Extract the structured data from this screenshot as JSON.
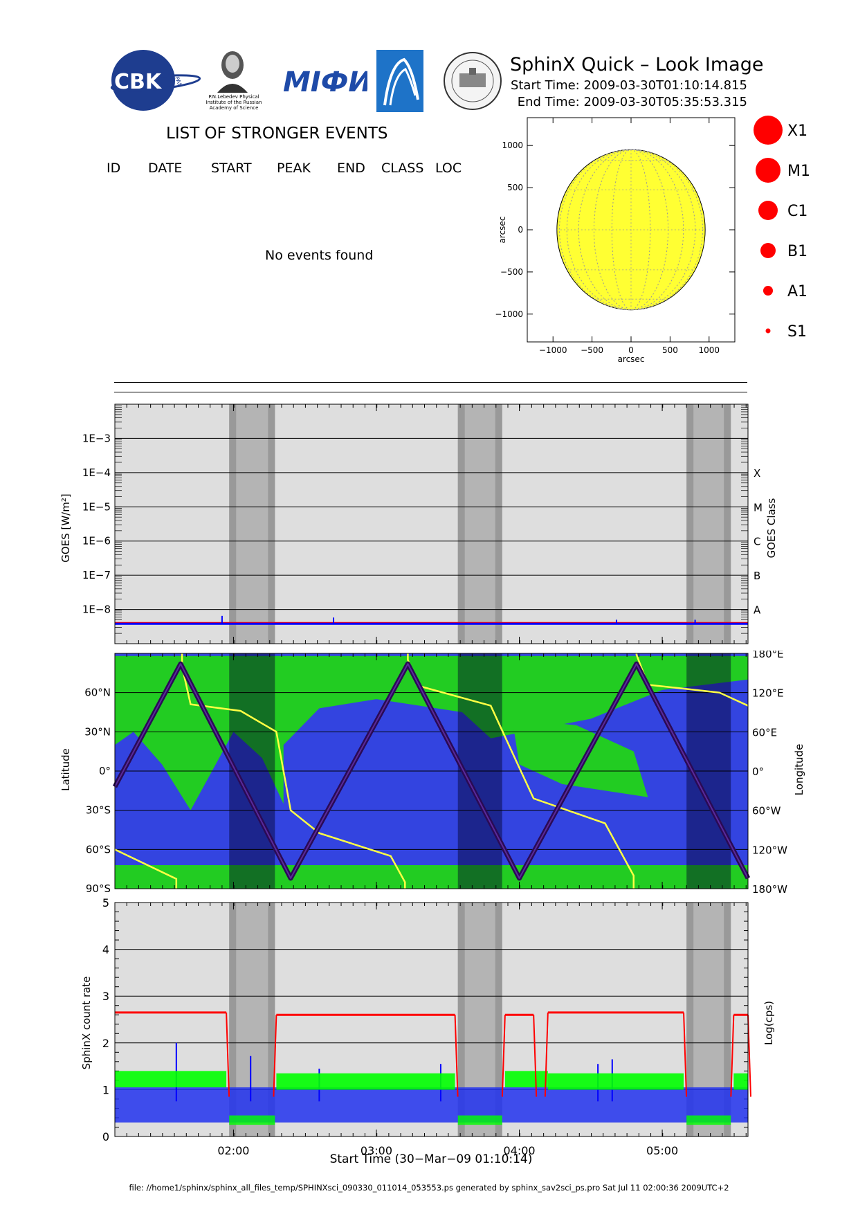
{
  "header": {
    "title": "SphinX Quick – Look Image",
    "start_time": "Start Time: 2009-03-30T01:10:14.815",
    "end_time": "End Time: 2009-03-30T05:35:53.315",
    "logos": [
      {
        "name": "cbk-pan-logo",
        "text": "CBK",
        "subtext": "PAN"
      },
      {
        "name": "lebedev-institute-logo",
        "caption": [
          "P.N.Lebedev Physical",
          "Institute of the Russian",
          "Academy of Science"
        ]
      },
      {
        "name": "mifi-logo",
        "text": "MIФИ"
      },
      {
        "name": "ifw-logo"
      },
      {
        "name": "university-seal-logo"
      }
    ]
  },
  "events": {
    "title": "LIST OF STRONGER EVENTS",
    "columns": [
      "ID",
      "DATE",
      "START",
      "PEAK",
      "END",
      "CLASS",
      "LOC"
    ],
    "empty_message": "No events found"
  },
  "legend": {
    "color": "#ff0000",
    "classes": [
      {
        "label": "X1"
      },
      {
        "label": "M1"
      },
      {
        "label": "C1"
      },
      {
        "label": "B1"
      },
      {
        "label": "A1"
      },
      {
        "label": "S1"
      }
    ]
  },
  "footer": "file: //home1/sphinx/sphinx_all_files_temp/SPHINXsci_090330_011014_053553.ps generated by sphinx_sav2sci_ps.pro Sat Jul 11 02:00:36 2009UTC+2",
  "chart_data": [
    {
      "type": "scatter",
      "name": "solar-disk",
      "xlabel": "arcsec",
      "ylabel": "arcsec",
      "xlim": [
        -1330,
        1330
      ],
      "ylim": [
        -1330,
        1330
      ],
      "xticks": [
        -1000,
        -500,
        0,
        500,
        1000
      ],
      "yticks": [
        -1000,
        -500,
        0,
        500,
        1000
      ],
      "tick_labels": [
        "−1000",
        "−500",
        "0",
        "500",
        "1000"
      ],
      "disk_radius": 950,
      "disk_color": "#ffff33",
      "points": []
    },
    {
      "type": "line",
      "name": "goes-flux",
      "ylabel": "GOES [W/m²]",
      "ylabel_right": "GOES Class",
      "y_scale": "log",
      "ylim": [
        1e-09,
        0.01
      ],
      "ytick_labels": [
        "1E−8",
        "1E−7",
        "1E−6",
        "1E−5",
        "1E−4",
        "1E−3"
      ],
      "ytick_values": [
        1e-08,
        1e-07,
        1e-06,
        1e-05,
        0.0001,
        0.001
      ],
      "class_labels": [
        "A",
        "B",
        "C",
        "M",
        "X"
      ],
      "class_values": [
        1e-08,
        1e-07,
        1e-06,
        1e-05,
        0.0001
      ],
      "series": [
        {
          "color": "#ff0000",
          "level": 4e-09
        },
        {
          "color": "#0000ff",
          "level": 4e-09,
          "spikes": [
            [
              1.92,
              6.5e-09
            ],
            [
              2.7,
              5.8e-09
            ],
            [
              4.68,
              5e-09
            ],
            [
              5.23,
              5e-09
            ]
          ]
        }
      ]
    },
    {
      "type": "line",
      "name": "orbit-track",
      "ylabel": "Latitude",
      "ylabel_right": "Longitude",
      "ylim": [
        -90,
        90
      ],
      "lat_ticks": [
        "90°S",
        "60°S",
        "30°S",
        "0°",
        "30°N",
        "60°N"
      ],
      "lat_values": [
        -90,
        -60,
        -30,
        0,
        30,
        60
      ],
      "lon_ticks": [
        "180°W",
        "120°W",
        "60°W",
        "0°",
        "60°E",
        "120°E",
        "180°E"
      ],
      "lon_values": [
        -180,
        -120,
        -60,
        0,
        60,
        120,
        180
      ],
      "map_colors": {
        "ocean": "#3344e0",
        "land": "#22cc22",
        "track": "#2a0a55",
        "longitude": "#ffff44"
      },
      "latitude_track": [
        [
          1.17,
          -12
        ],
        [
          1.63,
          82
        ],
        [
          2.4,
          -82
        ],
        [
          3.22,
          82
        ],
        [
          4.0,
          -82
        ],
        [
          4.82,
          82
        ],
        [
          5.6,
          -82
        ]
      ],
      "longitude_track": [
        [
          1.17,
          -120
        ],
        [
          1.6,
          -165
        ],
        [
          1.64,
          160
        ],
        [
          1.7,
          102
        ],
        [
          2.05,
          92
        ],
        [
          2.3,
          60
        ],
        [
          2.4,
          -60
        ],
        [
          2.6,
          -95
        ],
        [
          3.1,
          -130
        ],
        [
          3.2,
          -170
        ],
        [
          3.22,
          170
        ],
        [
          3.3,
          130
        ],
        [
          3.8,
          100
        ],
        [
          4.0,
          5
        ],
        [
          4.1,
          -42
        ],
        [
          4.6,
          -80
        ],
        [
          4.8,
          -160
        ],
        [
          4.82,
          178
        ],
        [
          4.9,
          132
        ],
        [
          5.4,
          120
        ],
        [
          5.6,
          100
        ]
      ]
    },
    {
      "type": "line",
      "name": "sphinx-count-rate",
      "ylabel": "SphinX count rate",
      "ylabel_right": "Log(cps)",
      "xlabel": "Start Time (30−Mar−09 01:10:14)",
      "ylim": [
        0,
        5
      ],
      "yticks": [
        0,
        1,
        2,
        3,
        4,
        5
      ],
      "xlim": [
        1.17,
        5.6
      ],
      "xtick_values": [
        2.0,
        3.0,
        4.0,
        5.0
      ],
      "xtick_labels": [
        "02:00",
        "03:00",
        "04:00",
        "05:00"
      ],
      "night_intervals": [
        [
          1.97,
          2.29
        ],
        [
          3.57,
          3.88
        ],
        [
          5.17,
          5.48
        ]
      ],
      "series": [
        {
          "color": "#ff0000",
          "segments": [
            {
              "from": 1.17,
              "to": 1.95,
              "level": 2.65
            },
            {
              "from": 2.3,
              "to": 3.55,
              "level": 2.6
            },
            {
              "from": 3.9,
              "to": 4.1,
              "level": 2.6
            },
            {
              "from": 4.2,
              "to": 5.15,
              "level": 2.65
            },
            {
              "from": 5.5,
              "to": 5.6,
              "level": 2.6
            }
          ]
        },
        {
          "color": "#00ff00",
          "segments": [
            {
              "from": 1.17,
              "to": 1.95,
              "level": 1.3
            },
            {
              "from": 2.3,
              "to": 3.55,
              "level": 1.25
            },
            {
              "from": 3.9,
              "to": 4.2,
              "level": 1.3
            },
            {
              "from": 4.2,
              "to": 5.15,
              "level": 1.25
            },
            {
              "from": 5.5,
              "to": 5.6,
              "level": 1.25
            }
          ]
        },
        {
          "color": "#0000ff",
          "level": 0.75,
          "spikes": [
            [
              1.6,
              2.0
            ],
            [
              2.12,
              1.72
            ],
            [
              2.6,
              1.45
            ],
            [
              3.45,
              1.55
            ],
            [
              4.55,
              1.55
            ],
            [
              4.65,
              1.65
            ]
          ]
        }
      ]
    }
  ]
}
